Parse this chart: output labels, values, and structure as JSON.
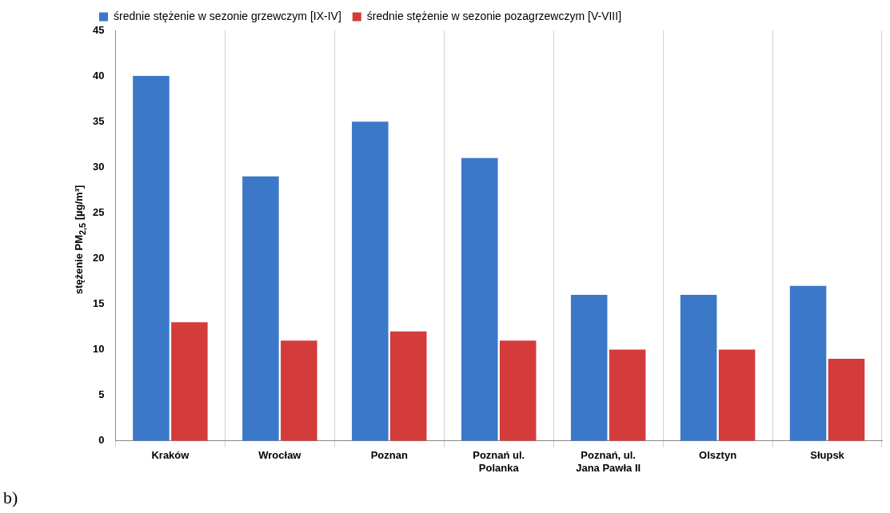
{
  "chart_data": {
    "type": "bar",
    "ylabel": "stężenie PM$_{2,5}$ [µg/m³]",
    "categories": [
      "Kraków",
      "Wrocław",
      "Poznan",
      "Poznań ul. Polanka",
      "Poznań, ul. Jana Pawła II",
      "Olsztyn",
      "Słupsk"
    ],
    "series": [
      {
        "name": "średnie stężenie w sezonie grzewczym [IX-IV]",
        "color": "#3b78c8",
        "values": [
          40,
          29,
          35,
          31,
          16,
          16,
          17
        ]
      },
      {
        "name": "średnie stężenie w sezonie pozagrzewczym [V-VIII]",
        "color": "#d43c3c",
        "values": [
          13,
          11,
          12,
          11,
          10,
          10,
          9
        ]
      }
    ],
    "ylim": [
      0,
      45
    ],
    "yticks": [
      0,
      5,
      10,
      15,
      20,
      25,
      30,
      35,
      40,
      45
    ],
    "grid": "x",
    "legend": "top",
    "annotations": [
      "b)"
    ]
  }
}
